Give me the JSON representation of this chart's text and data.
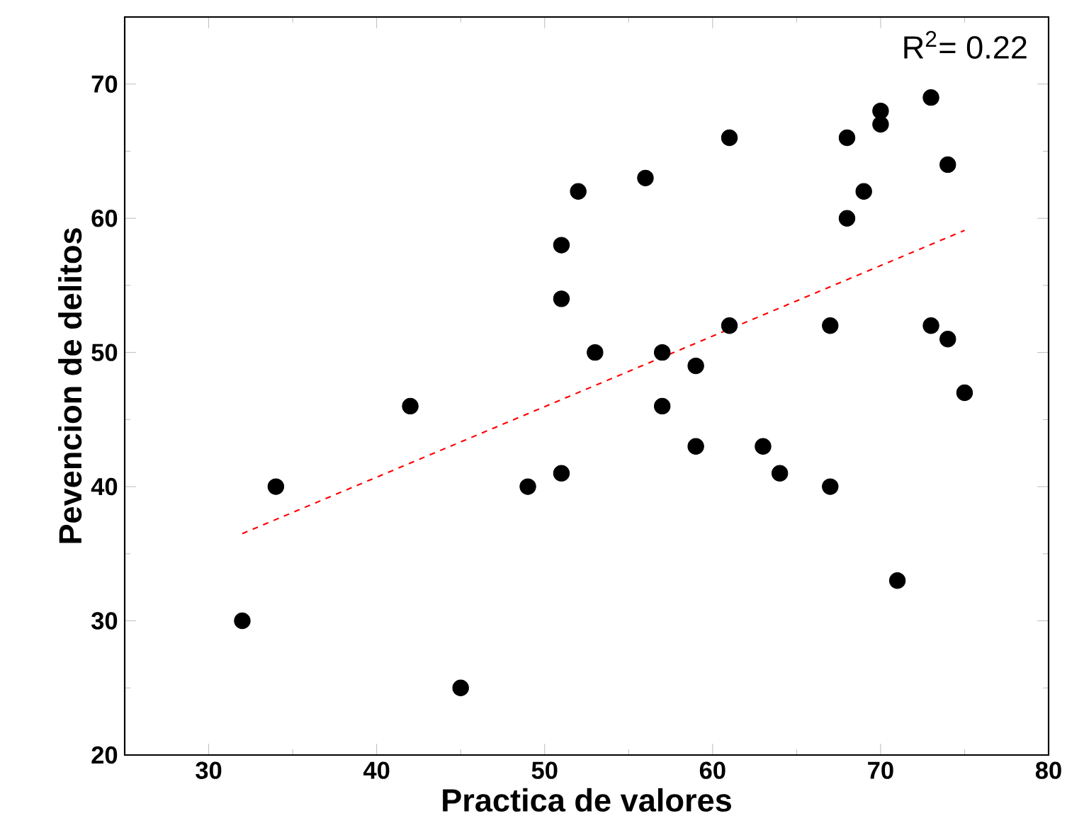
{
  "chart_data": {
    "type": "scatter",
    "xlabel": "Practica de valores",
    "ylabel": "Pevencion de delitos",
    "annotations": [
      "R$^{2}$= 0.22"
    ],
    "xlim": [
      25,
      80
    ],
    "ylim": [
      20,
      75
    ],
    "xticks": [
      30,
      40,
      50,
      60,
      70,
      80
    ],
    "yticks": [
      20,
      30,
      40,
      50,
      60,
      70
    ],
    "marker": "circle",
    "series": [
      {
        "color": "#000000",
        "x": [
          32,
          34,
          42,
          45,
          49,
          51,
          51,
          51,
          52,
          53,
          56,
          57,
          57,
          59,
          59,
          61,
          61,
          63,
          64,
          67,
          67,
          68,
          68,
          69,
          70,
          70,
          71,
          73,
          73,
          74,
          74,
          75
        ],
        "values": [
          30,
          40,
          46,
          25,
          40,
          41,
          54,
          58,
          62,
          50,
          63,
          50,
          46,
          49,
          43,
          52,
          66,
          43,
          41,
          52,
          40,
          60,
          66,
          62,
          68,
          67,
          33,
          69,
          52,
          64,
          51,
          47
        ]
      },
      {
        "type": "line",
        "color": "#ff0000",
        "line_style": "dashed",
        "marker": "none",
        "x": [
          32,
          75
        ],
        "values": [
          36.5,
          59.1
        ]
      }
    ]
  }
}
